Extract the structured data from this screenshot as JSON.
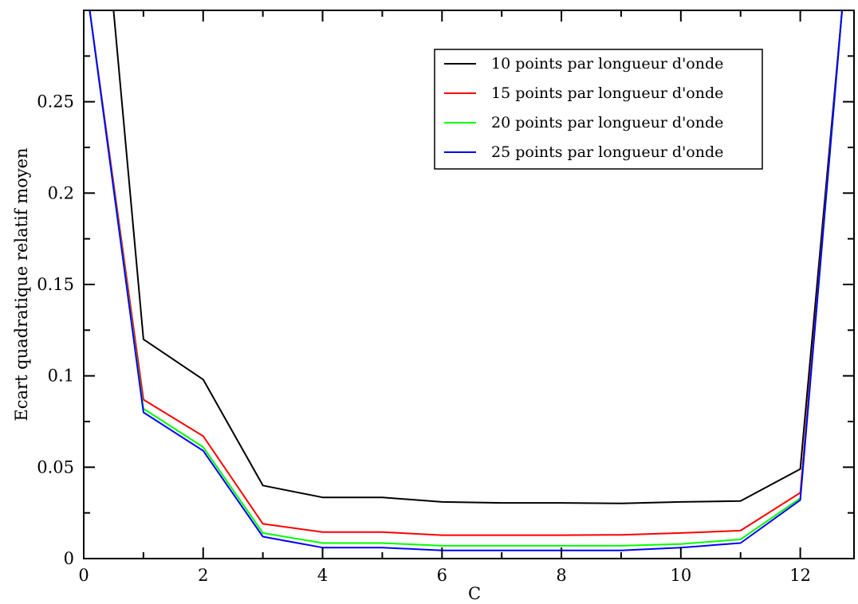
{
  "chart_data": {
    "type": "line",
    "title": "",
    "xlabel": "C",
    "ylabel": "Ecart quadratique relatif moyen",
    "xlim": [
      0,
      12.9
    ],
    "ylim": [
      0,
      0.3
    ],
    "x_ticks": [
      "0",
      "2",
      "4",
      "6",
      "8",
      "10",
      "12"
    ],
    "y_ticks": [
      "0",
      "0.05",
      "0.1",
      "0.15",
      "0.2",
      "0.25"
    ],
    "legend_position": "top-right",
    "grid": false,
    "series": [
      {
        "name": "10 points par longueur d'onde",
        "color": "#000000",
        "x": [
          0.1,
          0.5,
          1,
          2,
          3,
          4,
          5,
          6,
          7,
          8,
          9,
          10,
          11,
          12,
          12.7
        ],
        "y": [
          0.3,
          0.3,
          0.12,
          0.098,
          0.04,
          0.0335,
          0.0335,
          0.031,
          0.0305,
          0.0305,
          0.0302,
          0.031,
          0.0315,
          0.049,
          0.3
        ]
      },
      {
        "name": "15 points par longueur d'onde",
        "color": "#ff0000",
        "x": [
          0.1,
          1,
          2,
          3,
          4,
          5,
          6,
          7,
          8,
          9,
          10,
          11,
          12,
          12.7
        ],
        "y": [
          0.3,
          0.087,
          0.067,
          0.019,
          0.0145,
          0.0145,
          0.0128,
          0.0128,
          0.0128,
          0.013,
          0.014,
          0.0153,
          0.036,
          0.3
        ]
      },
      {
        "name": "20 points par longueur d'onde",
        "color": "#00ff00",
        "x": [
          0.1,
          1,
          2,
          3,
          4,
          5,
          6,
          7,
          8,
          9,
          10,
          11,
          12,
          12.7
        ],
        "y": [
          0.3,
          0.082,
          0.061,
          0.014,
          0.0085,
          0.0085,
          0.007,
          0.007,
          0.007,
          0.007,
          0.008,
          0.0105,
          0.033,
          0.3
        ]
      },
      {
        "name": "25 points par longueur d'onde",
        "color": "#0000ff",
        "x": [
          0.1,
          1,
          2,
          3,
          4,
          5,
          6,
          7,
          8,
          9,
          10,
          11,
          12,
          12.7
        ],
        "y": [
          0.3,
          0.08,
          0.059,
          0.012,
          0.006,
          0.006,
          0.0045,
          0.0045,
          0.0045,
          0.0045,
          0.006,
          0.0085,
          0.032,
          0.3
        ]
      }
    ]
  }
}
